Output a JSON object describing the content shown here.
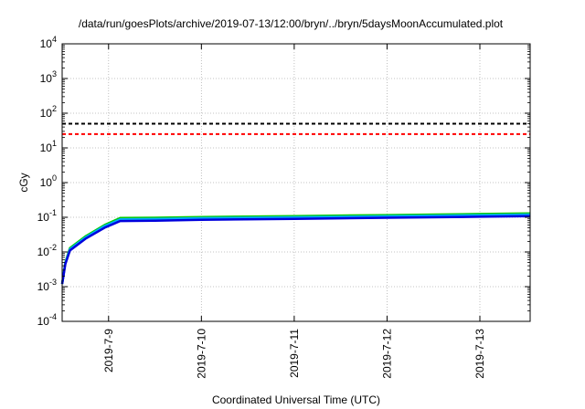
{
  "chart_data": {
    "type": "line",
    "title": "/data/run/goesPlots/archive/2019-07-13/12:00/bryn/../bryn/5daysMoonAccumulated.plot",
    "xlabel": "Coordinated Universal Time (UTC)",
    "ylabel": "cGy",
    "yscale": "log",
    "ylim": [
      0.0001,
      10000
    ],
    "xlim": [
      "2019-07-08 12:00",
      "2019-07-13 13:00"
    ],
    "grid": true,
    "x_ticks": [
      "2019-7-9",
      "2019-7-10",
      "2019-7-11",
      "2019-7-12",
      "2019-7-13"
    ],
    "y_ticks": [
      {
        "value": 0.0001,
        "base": "10",
        "exp": "-4"
      },
      {
        "value": 0.001,
        "base": "10",
        "exp": "-3"
      },
      {
        "value": 0.01,
        "base": "10",
        "exp": "-2"
      },
      {
        "value": 0.1,
        "base": "10",
        "exp": "-1"
      },
      {
        "value": 1,
        "base": "10",
        "exp": "0"
      },
      {
        "value": 10,
        "base": "10",
        "exp": "1"
      },
      {
        "value": 100,
        "base": "10",
        "exp": "2"
      },
      {
        "value": 1000,
        "base": "10",
        "exp": "3"
      },
      {
        "value": 10000,
        "base": "10",
        "exp": "4"
      }
    ],
    "hlines": [
      {
        "value": 50,
        "color": "#000000",
        "style": "dashed"
      },
      {
        "value": 25,
        "color": "#ff0000",
        "style": "dashed"
      }
    ],
    "series": [
      {
        "color": "#00cc00",
        "x": [
          "2019-07-08 12:00",
          "2019-07-08 12:50",
          "2019-07-08 14:00",
          "2019-07-08 18:00",
          "2019-07-08 23:00",
          "2019-07-09 03:00",
          "2019-07-09 12:00",
          "2019-07-10 00:00",
          "2019-07-11 00:00",
          "2019-07-12 00:00",
          "2019-07-13 00:00",
          "2019-07-13 13:00"
        ],
        "y": [
          0.0012,
          0.005,
          0.013,
          0.028,
          0.06,
          0.095,
          0.097,
          0.102,
          0.108,
          0.116,
          0.124,
          0.13
        ]
      },
      {
        "color": "#00aaff",
        "x": [
          "2019-07-08 12:00",
          "2019-07-08 12:50",
          "2019-07-08 14:00",
          "2019-07-08 18:00",
          "2019-07-08 23:00",
          "2019-07-09 03:00",
          "2019-07-09 12:00",
          "2019-07-10 00:00",
          "2019-07-11 00:00",
          "2019-07-12 00:00",
          "2019-07-13 00:00",
          "2019-07-13 13:00"
        ],
        "y": [
          0.0012,
          0.0048,
          0.012,
          0.026,
          0.056,
          0.087,
          0.089,
          0.094,
          0.1,
          0.107,
          0.115,
          0.12
        ]
      },
      {
        "color": "#0000dd",
        "x": [
          "2019-07-08 12:00",
          "2019-07-08 12:50",
          "2019-07-08 14:00",
          "2019-07-08 18:00",
          "2019-07-08 23:00",
          "2019-07-09 03:00",
          "2019-07-09 12:00",
          "2019-07-10 00:00",
          "2019-07-11 00:00",
          "2019-07-12 00:00",
          "2019-07-13 00:00",
          "2019-07-13 13:00"
        ],
        "y": [
          0.0012,
          0.0045,
          0.011,
          0.024,
          0.05,
          0.078,
          0.08,
          0.085,
          0.09,
          0.097,
          0.104,
          0.108
        ]
      }
    ]
  }
}
